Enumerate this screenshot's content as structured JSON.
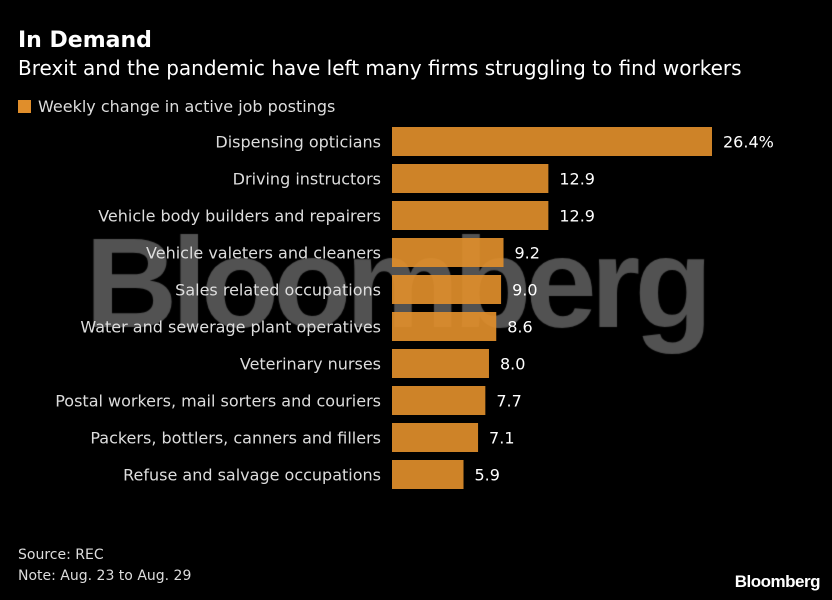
{
  "chart_data": {
    "type": "bar",
    "orientation": "horizontal",
    "title": "In Demand",
    "subtitle": "Brexit and the pandemic have left many firms struggling to find workers",
    "categories": [
      "Dispensing opticians",
      "Driving instructors",
      "Vehicle body builders and repairers",
      "Vehicle valeters and cleaners",
      "Sales related occupations",
      "Water and sewerage plant operatives",
      "Veterinary nurses",
      "Postal workers, mail sorters and couriers",
      "Packers, bottlers, canners and fillers",
      "Refuse and salvage occupations"
    ],
    "series": [
      {
        "name": "Weekly change in active job postings",
        "values": [
          26.4,
          12.9,
          12.9,
          9.2,
          9.0,
          8.6,
          8.0,
          7.7,
          7.1,
          5.9
        ],
        "color": "#e08e2b"
      }
    ],
    "data_labels": [
      "26.4%",
      "12.9",
      "12.9",
      "9.2",
      "9.0",
      "8.6",
      "8.0",
      "7.7",
      "7.1",
      "5.9"
    ],
    "xlim": [
      0,
      26.4
    ],
    "grid": false,
    "legend_position": "top-left"
  },
  "footer": {
    "source": "Source: REC",
    "note": "Note: Aug. 23 to Aug. 29"
  },
  "branding": {
    "watermark": "Bloomberg",
    "logo": "Bloomberg"
  }
}
